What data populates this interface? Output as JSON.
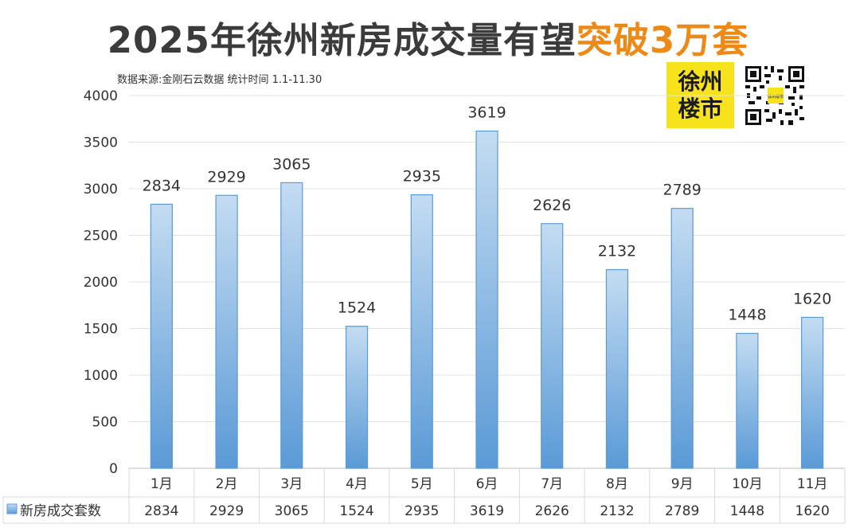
{
  "header": {
    "title_main": "2025年徐州新房成交量有望",
    "title_highlight": "突破3万套",
    "source": "数据来源:金刚石云数据 统计时间  1.1-11.30",
    "logo_line1": "徐州",
    "logo_line2": "楼市",
    "qr_caption": "徐州楼市"
  },
  "colors": {
    "bar_top": "#c4dcf2",
    "bar_bottom": "#5a9ad6",
    "bar_stroke": "#5b9bd5",
    "highlight": "#ed8a17",
    "logo_bg": "#f7e31c"
  },
  "chart_data": {
    "type": "bar",
    "title": "2025年徐州新房成交量有望突破3万套",
    "categories": [
      "1月",
      "2月",
      "3月",
      "4月",
      "5月",
      "6月",
      "7月",
      "8月",
      "9月",
      "10月",
      "11月"
    ],
    "series": [
      {
        "name": "新房成交套数",
        "values": [
          2834,
          2929,
          3065,
          1524,
          2935,
          3619,
          2626,
          2132,
          2789,
          1448,
          1620
        ]
      }
    ],
    "ylim": [
      0,
      4000
    ],
    "yticks": [
      0,
      500,
      1000,
      1500,
      2000,
      2500,
      3000,
      3500,
      4000
    ],
    "grid": true,
    "data_labels": true,
    "data_table": true,
    "xlabel": "",
    "ylabel": ""
  }
}
